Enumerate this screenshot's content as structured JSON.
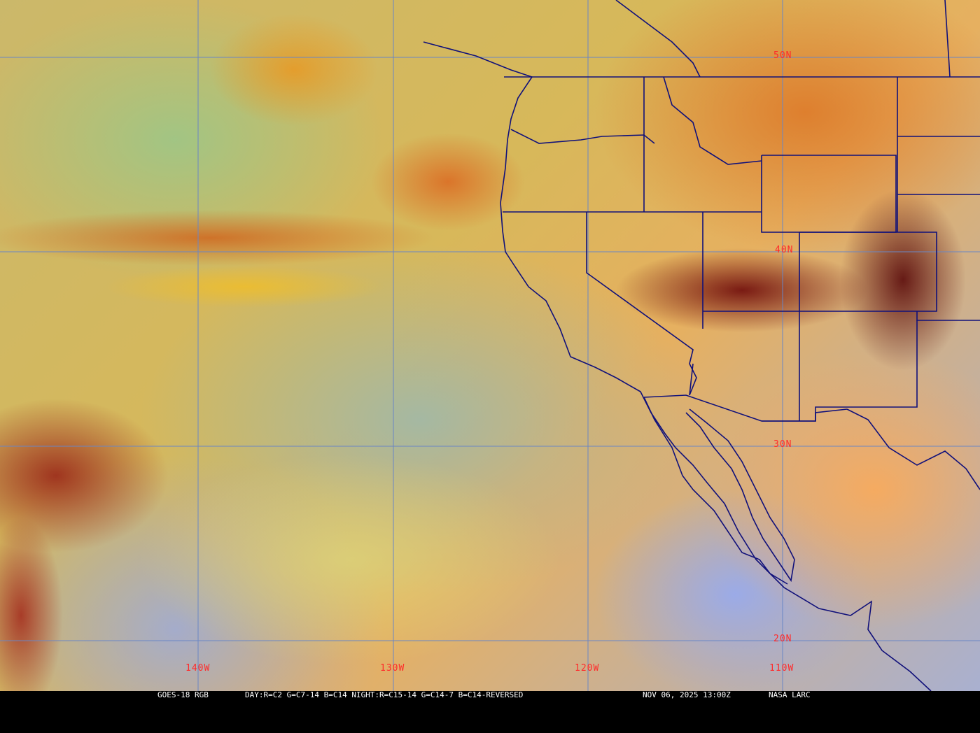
{
  "map": {
    "lat_labels": [
      "50N",
      "40N",
      "30N",
      "20N"
    ],
    "lon_labels": [
      "140W",
      "130W",
      "120W",
      "110W"
    ],
    "gridline_color": "#6a86c4",
    "label_color": "#ff2a2a",
    "border_color": "#10107a"
  },
  "caption": {
    "product": "GOES-18 RGB",
    "recipe": "DAY:R=C2 G=C7-14 B=C14 NIGHT:R=C15-14 G=C14-7 B=C14-REVERSED",
    "timestamp": "NOV 06, 2025 13:00Z",
    "source": "NASA LARC"
  }
}
